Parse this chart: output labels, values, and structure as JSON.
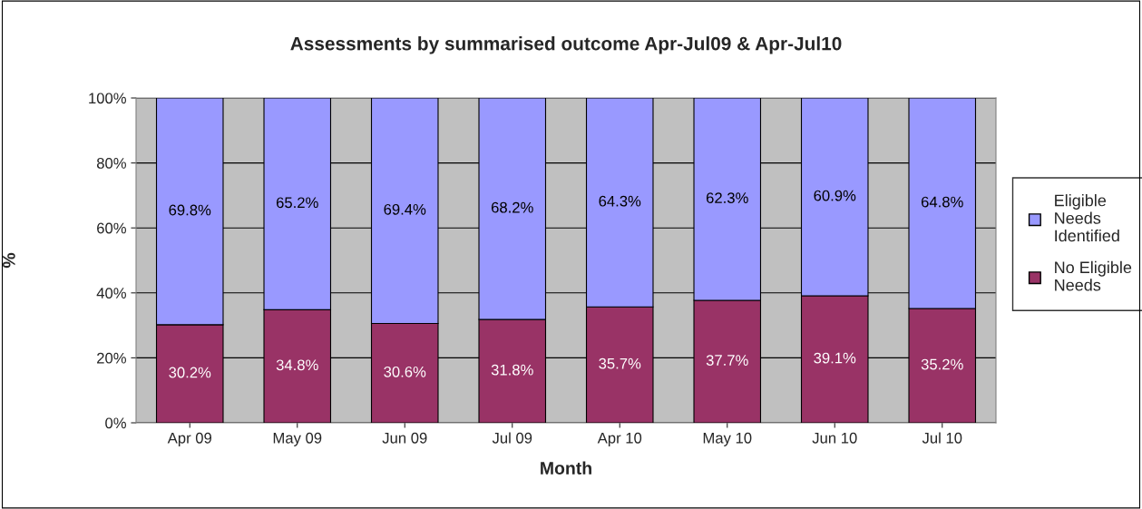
{
  "chart_data": {
    "type": "bar",
    "stacked": true,
    "title": "Assessments by summarised outcome Apr-Jul09 & Apr-Jul10",
    "xlabel": "Month",
    "ylabel": "%",
    "categories": [
      "Apr 09",
      "May 09",
      "Jun 09",
      "Jul 09",
      "Apr 10",
      "May 10",
      "Jun 10",
      "Jul 10"
    ],
    "series": [
      {
        "name": "No Eligible Needs",
        "color": "#993366",
        "values": [
          30.2,
          34.8,
          30.6,
          31.8,
          35.7,
          37.7,
          39.1,
          35.2
        ],
        "value_labels": [
          "30.2%",
          "34.8%",
          "30.6%",
          "31.8%",
          "35.7%",
          "37.7%",
          "39.1%",
          "35.2%"
        ]
      },
      {
        "name": "Eligible Needs Identified",
        "color": "#9999ff",
        "values": [
          69.8,
          65.2,
          69.4,
          68.2,
          64.3,
          62.3,
          60.9,
          64.8
        ],
        "value_labels": [
          "69.8%",
          "65.2%",
          "69.4%",
          "68.2%",
          "64.3%",
          "62.3%",
          "60.9%",
          "64.8%"
        ]
      }
    ],
    "ylim": [
      0,
      100
    ],
    "yticks": [
      {
        "value": 0,
        "label": "0%"
      },
      {
        "value": 20,
        "label": "20%"
      },
      {
        "value": 40,
        "label": "40%"
      },
      {
        "value": 60,
        "label": "60%"
      },
      {
        "value": 80,
        "label": "80%"
      },
      {
        "value": 100,
        "label": "100%"
      }
    ],
    "grid": "y",
    "legend": "right"
  }
}
